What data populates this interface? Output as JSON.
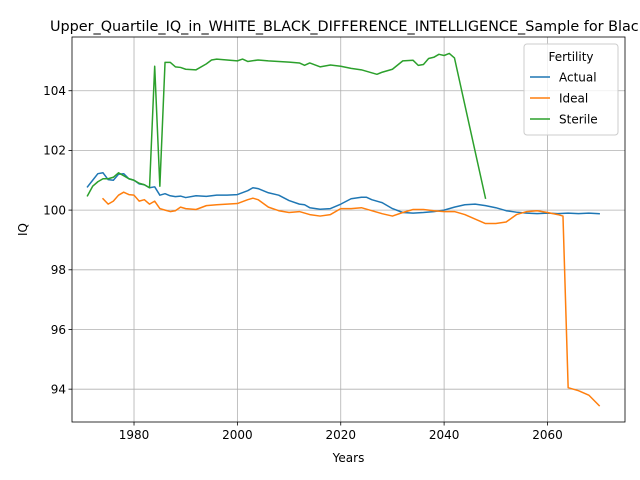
{
  "chart_data": {
    "type": "line",
    "title": "Upper_Quartile_IQ_in_WHITE_BLACK_DIFFERENCE_INTELLIGENCE_Sample for Black",
    "xlabel": "Years",
    "ylabel": "IQ",
    "xlim": [
      1968,
      2075
    ],
    "ylim": [
      92.9,
      105.8
    ],
    "xticks": [
      1980,
      2000,
      2020,
      2040,
      2060
    ],
    "yticks": [
      94,
      96,
      98,
      100,
      102,
      104
    ],
    "grid": true,
    "legend": {
      "title": "Fertility",
      "placement": "top-right"
    },
    "series": [
      {
        "name": "Actual",
        "color": "#1f77b4",
        "points": [
          [
            1971,
            100.78
          ],
          [
            1972,
            101.0
          ],
          [
            1973,
            101.22
          ],
          [
            1974,
            101.25
          ],
          [
            1975,
            101.02
          ],
          [
            1976,
            101.0
          ],
          [
            1977,
            101.2
          ],
          [
            1978,
            101.22
          ],
          [
            1979,
            101.05
          ],
          [
            1980,
            101.0
          ],
          [
            1981,
            100.88
          ],
          [
            1982,
            100.85
          ],
          [
            1983,
            100.75
          ],
          [
            1984,
            100.78
          ],
          [
            1985,
            100.5
          ],
          [
            1986,
            100.55
          ],
          [
            1987,
            100.48
          ],
          [
            1988,
            100.45
          ],
          [
            1989,
            100.47
          ],
          [
            1990,
            100.42
          ],
          [
            1992,
            100.48
          ],
          [
            1994,
            100.46
          ],
          [
            1996,
            100.5
          ],
          [
            1998,
            100.5
          ],
          [
            2000,
            100.52
          ],
          [
            2002,
            100.65
          ],
          [
            2003,
            100.75
          ],
          [
            2004,
            100.72
          ],
          [
            2006,
            100.58
          ],
          [
            2008,
            100.5
          ],
          [
            2010,
            100.32
          ],
          [
            2012,
            100.2
          ],
          [
            2013,
            100.18
          ],
          [
            2014,
            100.08
          ],
          [
            2016,
            100.03
          ],
          [
            2018,
            100.05
          ],
          [
            2020,
            100.2
          ],
          [
            2022,
            100.38
          ],
          [
            2024,
            100.43
          ],
          [
            2025,
            100.43
          ],
          [
            2026,
            100.35
          ],
          [
            2028,
            100.25
          ],
          [
            2030,
            100.05
          ],
          [
            2032,
            99.92
          ],
          [
            2034,
            99.9
          ],
          [
            2036,
            99.92
          ],
          [
            2038,
            99.95
          ],
          [
            2040,
            100.0
          ],
          [
            2042,
            100.1
          ],
          [
            2044,
            100.18
          ],
          [
            2046,
            100.2
          ],
          [
            2048,
            100.15
          ],
          [
            2050,
            100.08
          ],
          [
            2052,
            99.98
          ],
          [
            2054,
            99.93
          ],
          [
            2056,
            99.9
          ],
          [
            2058,
            99.88
          ],
          [
            2060,
            99.9
          ],
          [
            2062,
            99.88
          ],
          [
            2064,
            99.9
          ],
          [
            2066,
            99.88
          ],
          [
            2068,
            99.9
          ],
          [
            2070,
            99.88
          ]
        ]
      },
      {
        "name": "Ideal",
        "color": "#ff7f0e",
        "points": [
          [
            1974,
            100.38
          ],
          [
            1975,
            100.2
          ],
          [
            1976,
            100.3
          ],
          [
            1977,
            100.5
          ],
          [
            1978,
            100.6
          ],
          [
            1979,
            100.52
          ],
          [
            1980,
            100.5
          ],
          [
            1981,
            100.3
          ],
          [
            1982,
            100.35
          ],
          [
            1983,
            100.2
          ],
          [
            1984,
            100.3
          ],
          [
            1985,
            100.05
          ],
          [
            1986,
            100.0
          ],
          [
            1987,
            99.95
          ],
          [
            1988,
            99.98
          ],
          [
            1989,
            100.1
          ],
          [
            1990,
            100.05
          ],
          [
            1992,
            100.02
          ],
          [
            1994,
            100.15
          ],
          [
            1996,
            100.18
          ],
          [
            1998,
            100.2
          ],
          [
            2000,
            100.22
          ],
          [
            2002,
            100.35
          ],
          [
            2003,
            100.4
          ],
          [
            2004,
            100.35
          ],
          [
            2006,
            100.1
          ],
          [
            2008,
            99.98
          ],
          [
            2010,
            99.92
          ],
          [
            2012,
            99.95
          ],
          [
            2014,
            99.85
          ],
          [
            2016,
            99.8
          ],
          [
            2018,
            99.85
          ],
          [
            2020,
            100.05
          ],
          [
            2022,
            100.05
          ],
          [
            2024,
            100.08
          ],
          [
            2026,
            99.98
          ],
          [
            2028,
            99.88
          ],
          [
            2030,
            99.8
          ],
          [
            2032,
            99.92
          ],
          [
            2034,
            100.02
          ],
          [
            2036,
            100.02
          ],
          [
            2038,
            99.98
          ],
          [
            2040,
            99.95
          ],
          [
            2042,
            99.95
          ],
          [
            2044,
            99.85
          ],
          [
            2046,
            99.7
          ],
          [
            2048,
            99.55
          ],
          [
            2050,
            99.55
          ],
          [
            2052,
            99.6
          ],
          [
            2054,
            99.85
          ],
          [
            2056,
            99.95
          ],
          [
            2058,
            99.98
          ],
          [
            2060,
            99.92
          ],
          [
            2062,
            99.85
          ],
          [
            2063,
            99.8
          ],
          [
            2064,
            94.05
          ],
          [
            2066,
            93.95
          ],
          [
            2068,
            93.8
          ],
          [
            2070,
            93.45
          ]
        ]
      },
      {
        "name": "Sterile",
        "color": "#2ca02c",
        "points": [
          [
            1971,
            100.48
          ],
          [
            1972,
            100.8
          ],
          [
            1973,
            100.95
          ],
          [
            1974,
            101.05
          ],
          [
            1975,
            101.05
          ],
          [
            1976,
            101.1
          ],
          [
            1977,
            101.25
          ],
          [
            1978,
            101.15
          ],
          [
            1979,
            101.05
          ],
          [
            1980,
            101.0
          ],
          [
            1981,
            100.9
          ],
          [
            1982,
            100.85
          ],
          [
            1983,
            100.75
          ],
          [
            1984,
            104.82
          ],
          [
            1985,
            100.8
          ],
          [
            1986,
            104.95
          ],
          [
            1987,
            104.95
          ],
          [
            1988,
            104.8
          ],
          [
            1989,
            104.78
          ],
          [
            1990,
            104.72
          ],
          [
            1992,
            104.7
          ],
          [
            1994,
            104.9
          ],
          [
            1995,
            105.03
          ],
          [
            1996,
            105.06
          ],
          [
            1998,
            105.03
          ],
          [
            2000,
            105.0
          ],
          [
            2001,
            105.06
          ],
          [
            2002,
            104.98
          ],
          [
            2004,
            105.03
          ],
          [
            2006,
            105.0
          ],
          [
            2008,
            104.98
          ],
          [
            2010,
            104.96
          ],
          [
            2012,
            104.93
          ],
          [
            2013,
            104.85
          ],
          [
            2014,
            104.93
          ],
          [
            2016,
            104.8
          ],
          [
            2018,
            104.86
          ],
          [
            2020,
            104.82
          ],
          [
            2022,
            104.75
          ],
          [
            2024,
            104.7
          ],
          [
            2026,
            104.6
          ],
          [
            2027,
            104.55
          ],
          [
            2028,
            104.62
          ],
          [
            2030,
            104.72
          ],
          [
            2032,
            105.0
          ],
          [
            2034,
            105.02
          ],
          [
            2035,
            104.85
          ],
          [
            2036,
            104.88
          ],
          [
            2037,
            105.08
          ],
          [
            2038,
            105.12
          ],
          [
            2039,
            105.22
          ],
          [
            2040,
            105.18
          ],
          [
            2041,
            105.25
          ],
          [
            2042,
            105.1
          ],
          [
            2048,
            100.4
          ]
        ]
      }
    ]
  }
}
